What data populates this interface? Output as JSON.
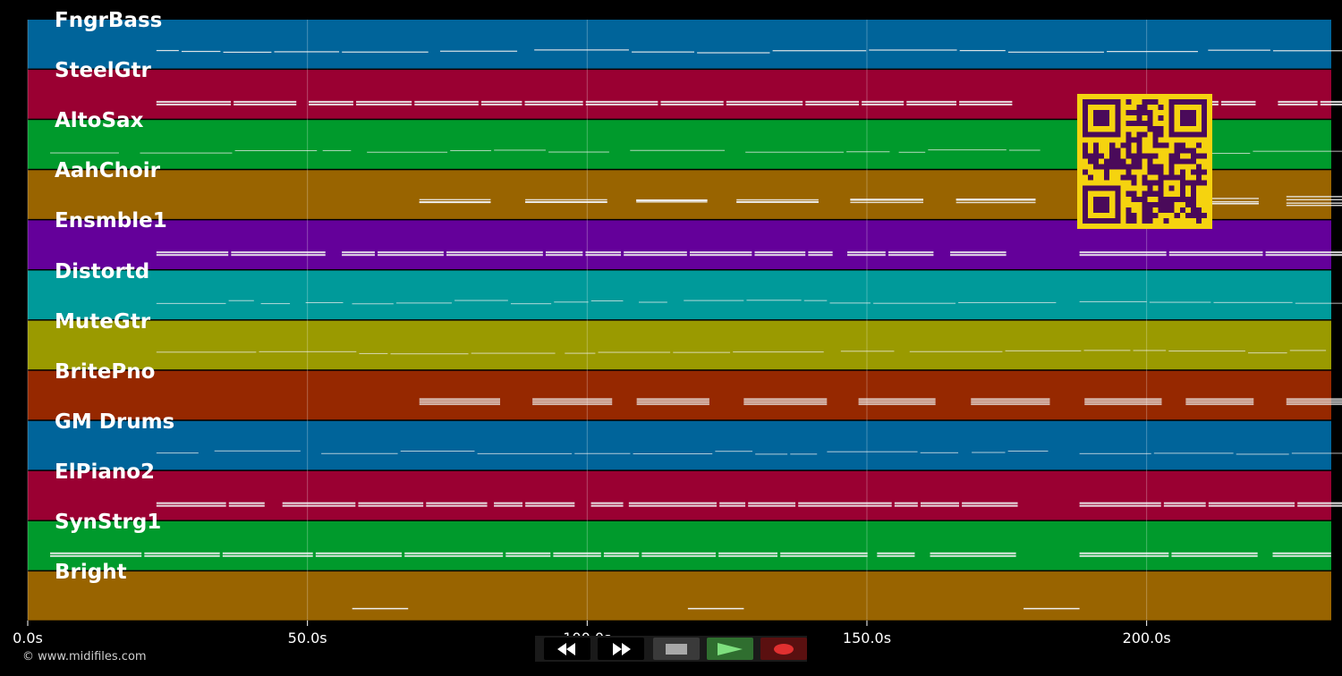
{
  "duration_s": 233,
  "tracks": [
    {
      "label": "FngrBass",
      "color": "#00649a",
      "note_style": "thin"
    },
    {
      "label": "SteelGtr",
      "color": "#9a0032",
      "note_style": "thick"
    },
    {
      "label": "AltoSax",
      "color": "#009a2c",
      "note_style": "dots"
    },
    {
      "label": "AahChoir",
      "color": "#996400",
      "note_style": "wavy"
    },
    {
      "label": "Ensmble1",
      "color": "#64009a",
      "note_style": "thick"
    },
    {
      "label": "Distortd",
      "color": "#009a9a",
      "note_style": "dots"
    },
    {
      "label": "MuteGtr",
      "color": "#9a9a00",
      "note_style": "dots"
    },
    {
      "label": "BritePno",
      "color": "#962800",
      "note_style": "blocks"
    },
    {
      "label": "GM Drums",
      "color": "#00649a",
      "note_style": "dots"
    },
    {
      "label": "ElPiano2",
      "color": "#9a0032",
      "note_style": "thick"
    },
    {
      "label": "SynStrg1",
      "color": "#009a2c",
      "note_style": "thick"
    },
    {
      "label": "Bright",
      "color": "#996400",
      "note_style": "sparse"
    }
  ],
  "time_axis": {
    "ticks": [
      0,
      50,
      100,
      150,
      200
    ],
    "labels": [
      "0.0s",
      "50.0s",
      "100.0s",
      "150.0s",
      "200.0s"
    ]
  },
  "copyright": "© www.midifiles.com",
  "transport": {
    "rewind_icon": "rewind-icon",
    "forward_icon": "fast-forward-icon",
    "stop_icon": "stop-icon",
    "play_icon": "play-icon",
    "record_icon": "record-icon",
    "colors": {
      "rewind": "#000000",
      "forward": "#000000",
      "stop": "#3a3a3a",
      "play": "#2f6e2f",
      "record": "#5a1010"
    }
  },
  "qr_colors": {
    "fg": "#4a0a5a",
    "bg": "#f5d30f"
  }
}
